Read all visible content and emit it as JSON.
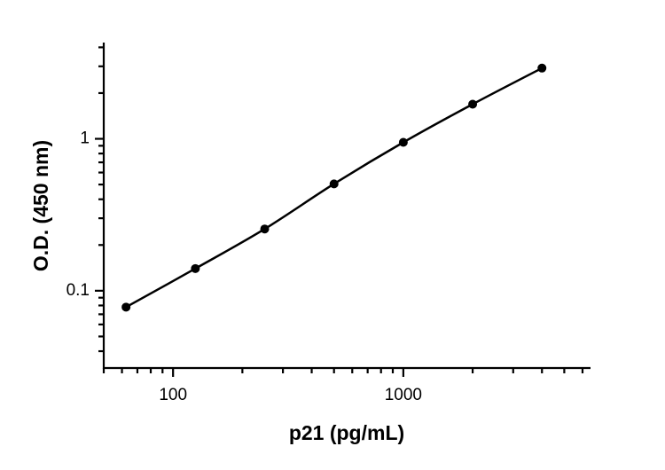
{
  "chart_data": {
    "type": "line",
    "x_label": "p21 (pg/mL)",
    "y_label": "O.D. (450 nm)",
    "x": [
      62.5,
      125,
      250,
      500,
      1000,
      2000,
      4000
    ],
    "series": [
      {
        "color": "#000000",
        "values": [
          0.078,
          0.14,
          0.255,
          0.505,
          0.948,
          1.69,
          2.92
        ]
      }
    ],
    "xscale": "log",
    "yscale": "log",
    "xlim": [
      50,
      6500
    ],
    "ylim": [
      0.031,
      4.3
    ],
    "xticks": [
      100,
      1000
    ],
    "yticks": [
      0.1,
      1
    ],
    "xminorticks": [
      50,
      60,
      70,
      80,
      90,
      200,
      300,
      400,
      500,
      600,
      700,
      800,
      900,
      2000,
      3000,
      4000,
      5000,
      6000
    ],
    "yminorticks": [
      0.04,
      0.05,
      0.06,
      0.07,
      0.08,
      0.09,
      0.2,
      0.3,
      0.4,
      0.5,
      0.6,
      0.7,
      0.8,
      0.9,
      2,
      3,
      4
    ]
  }
}
